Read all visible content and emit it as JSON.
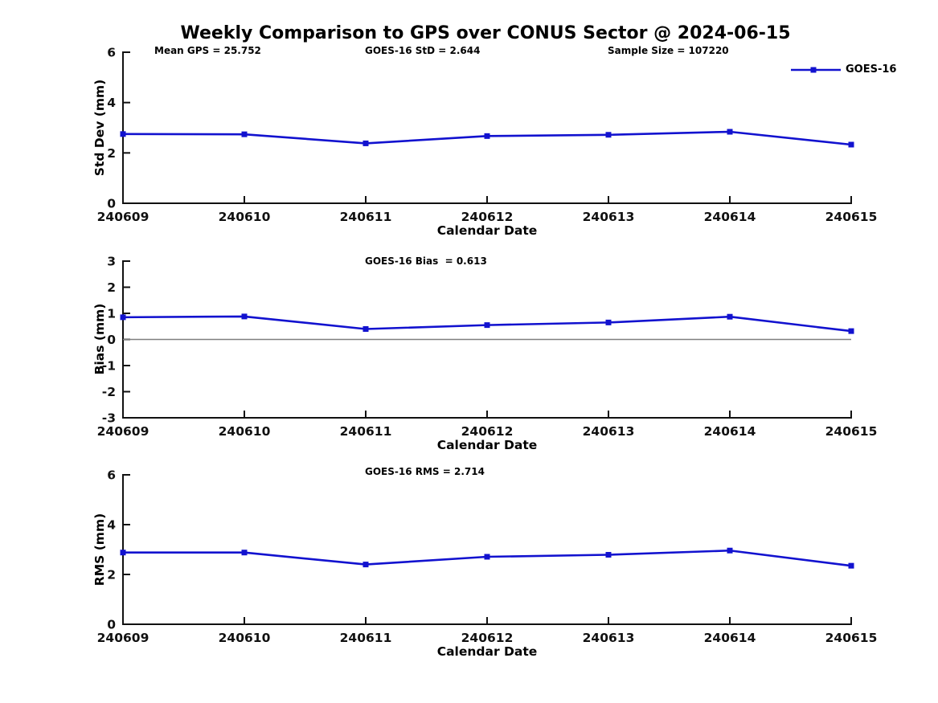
{
  "title": "Weekly Comparison to GPS over CONUS Sector @ 2024-06-15",
  "legend": {
    "label": "GOES-16"
  },
  "colors": {
    "line": "#1212cf",
    "axis": "#111111",
    "zero_line": "#7f7f7f"
  },
  "chart_data": [
    {
      "type": "line",
      "name": "std-dev-plot",
      "categories": [
        "240609",
        "240610",
        "240611",
        "240612",
        "240613",
        "240614",
        "240615"
      ],
      "series": [
        {
          "name": "GOES-16",
          "values": [
            2.75,
            2.74,
            2.38,
            2.67,
            2.72,
            2.84,
            2.33
          ]
        }
      ],
      "ylabel": "Std Dev (mm)",
      "xlabel": "Calendar Date",
      "ylim": [
        0,
        6
      ],
      "yticks": [
        0,
        2,
        4,
        6
      ],
      "grid": false,
      "legend_position": "upper-right",
      "annotations": {
        "mean_gps": "Mean GPS = 25.752",
        "std": "GOES-16 StD = 2.644",
        "sample_size": "Sample Size = 107220"
      }
    },
    {
      "type": "line",
      "name": "bias-plot",
      "categories": [
        "240609",
        "240610",
        "240611",
        "240612",
        "240613",
        "240614",
        "240615"
      ],
      "series": [
        {
          "name": "GOES-16",
          "values": [
            0.85,
            0.88,
            0.4,
            0.55,
            0.65,
            0.87,
            0.32
          ]
        }
      ],
      "ylabel": "Bias (mm)",
      "xlabel": "Calendar Date",
      "ylim": [
        -3,
        3
      ],
      "yticks": [
        -3,
        -2,
        -1,
        0,
        1,
        2,
        3
      ],
      "zero_line": true,
      "grid": false,
      "annotations": {
        "bias": "GOES-16 Bias  = 0.613"
      }
    },
    {
      "type": "line",
      "name": "rms-plot",
      "categories": [
        "240609",
        "240610",
        "240611",
        "240612",
        "240613",
        "240614",
        "240615"
      ],
      "series": [
        {
          "name": "GOES-16",
          "values": [
            2.88,
            2.88,
            2.4,
            2.71,
            2.79,
            2.96,
            2.35
          ]
        }
      ],
      "ylabel": "RMS (mm)",
      "xlabel": "Calendar Date",
      "ylim": [
        0,
        6
      ],
      "yticks": [
        0,
        2,
        4,
        6
      ],
      "grid": false,
      "annotations": {
        "rms": "GOES-16 RMS = 2.714"
      }
    }
  ]
}
